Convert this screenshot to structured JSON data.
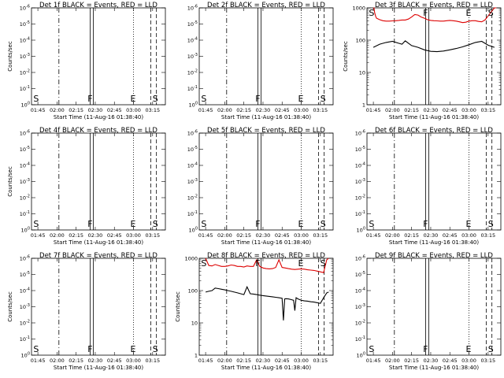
{
  "chart_data": [
    {
      "type": "line",
      "title": "Det 1f BLACK = Events, RED = LLD",
      "xlabel": "Start Time (11-Aug-16 01:38:40)",
      "ylabel": "Counts/sec",
      "x_ticks": [
        "01:45",
        "02:00",
        "02:15",
        "02:30",
        "02:45",
        "03:00",
        "03:15"
      ],
      "y_ticks": [
        "10^0",
        "10^-1",
        "10^-2",
        "10^-3",
        "10^-4",
        "10^-5",
        "10^-6"
      ],
      "markers": [
        "S",
        "F",
        "E",
        "S"
      ],
      "log_y": true,
      "series": []
    },
    {
      "type": "line",
      "title": "Det 2f BLACK = Events, RED = LLD",
      "xlabel": "Start Time (11-Aug-16 01:38:40)",
      "ylabel": "",
      "x_ticks": [
        "01:45",
        "02:00",
        "02:15",
        "02:30",
        "02:45",
        "03:00",
        "03:15"
      ],
      "y_ticks": [
        "10^0",
        "10^-1",
        "10^-2",
        "10^-3",
        "10^-4",
        "10^-5",
        "10^-6"
      ],
      "markers": [
        "S",
        "F",
        "E",
        "S"
      ],
      "log_y": true,
      "series": []
    },
    {
      "type": "line",
      "title": "Det 3f BLACK = Events, RED = LLD",
      "xlabel": "Start Time (11-Aug-16 01:38:40)",
      "ylabel": "Counts/sec",
      "x_ticks": [
        "01:45",
        "02:00",
        "02:15",
        "02:30",
        "02:45",
        "03:00",
        "03:15"
      ],
      "y_ticks": [
        "1",
        "10",
        "100",
        "1000"
      ],
      "markers": [
        "S",
        "F",
        "E",
        "S"
      ],
      "log_y": true,
      "ylim": [
        1,
        1000
      ],
      "series": [
        {
          "color": "#dd0000",
          "x": [
            1.0,
            1.1,
            1.2,
            1.35,
            1.5,
            2.0,
            2.5,
            3.0,
            3.5,
            4.0,
            4.5,
            5.0,
            5.5,
            6.0,
            6.5,
            7.0,
            7.5,
            8.0,
            8.5,
            9.0,
            9.5,
            10.0,
            10.5,
            11.0,
            11.5,
            12.0,
            12.5,
            13.0,
            13.5,
            14.0,
            14.5,
            15.0,
            15.5,
            16.0,
            16.5,
            17.0,
            17.5,
            18.0,
            18.5,
            19.0,
            19.5,
            20.0,
            20.3
          ],
          "y": [
            1000,
            1000,
            720,
            560,
            480,
            430,
            400,
            390,
            390,
            395,
            400,
            410,
            420,
            420,
            450,
            520,
            620,
            600,
            520,
            480,
            430,
            410,
            400,
            395,
            390,
            390,
            400,
            410,
            400,
            390,
            370,
            350,
            360,
            390,
            400,
            400,
            380,
            370,
            420,
            560,
            760,
            1000,
            1000
          ]
        },
        {
          "color": "#000000",
          "x": [
            1.0,
            2.0,
            3.0,
            4.0,
            5.0,
            5.5,
            6.0,
            7.0,
            8.0,
            9.0,
            10.0,
            11.0,
            12.0,
            13.0,
            14.0,
            15.0,
            16.0,
            17.0,
            18.0,
            19.0,
            20.0
          ],
          "y": [
            60,
            75,
            85,
            92,
            80,
            75,
            95,
            68,
            60,
            50,
            45,
            44,
            46,
            50,
            55,
            62,
            72,
            85,
            92,
            70,
            60
          ]
        }
      ]
    },
    {
      "type": "line",
      "title": "Det 4f BLACK = Events, RED = LLD",
      "xlabel": "Start Time (11-Aug-16 01:38:40)",
      "ylabel": "Counts/sec",
      "x_ticks": [
        "01:45",
        "02:00",
        "02:15",
        "02:30",
        "02:45",
        "03:00",
        "03:15"
      ],
      "y_ticks": [
        "10^0",
        "10^-1",
        "10^-2",
        "10^-3",
        "10^-4",
        "10^-5",
        "10^-6"
      ],
      "markers": [
        "S",
        "F",
        "E",
        "S"
      ],
      "log_y": true,
      "series": []
    },
    {
      "type": "line",
      "title": "Det 5f BLACK = Events, RED = LLD",
      "xlabel": "Start Time (11-Aug-16 01:38:40)",
      "ylabel": "",
      "x_ticks": [
        "01:45",
        "02:00",
        "02:15",
        "02:30",
        "02:45",
        "03:00",
        "03:15"
      ],
      "y_ticks": [
        "10^0",
        "10^-1",
        "10^-2",
        "10^-3",
        "10^-4",
        "10^-5",
        "10^-6"
      ],
      "markers": [
        "S",
        "F",
        "E",
        "S"
      ],
      "log_y": true,
      "series": []
    },
    {
      "type": "line",
      "title": "Det 6f BLACK = Events, RED = LLD",
      "xlabel": "Start Time (11-Aug-16 01:38:40)",
      "ylabel": "",
      "x_ticks": [
        "01:45",
        "02:00",
        "02:15",
        "02:30",
        "02:45",
        "03:00",
        "03:15"
      ],
      "y_ticks": [
        "10^0",
        "10^-1",
        "10^-2",
        "10^-3",
        "10^-4",
        "10^-5",
        "10^-6"
      ],
      "markers": [
        "S",
        "F",
        "E",
        "S"
      ],
      "log_y": true,
      "series": []
    },
    {
      "type": "line",
      "title": "Det 7f BLACK = Events, RED = LLD",
      "xlabel": "Start Time (11-Aug-16 01:38:40)",
      "ylabel": "Counts/sec",
      "x_ticks": [
        "01:45",
        "02:00",
        "02:15",
        "02:30",
        "02:45",
        "03:00",
        "03:15"
      ],
      "y_ticks": [
        "10^0",
        "10^-1",
        "10^-2",
        "10^-3",
        "10^-4",
        "10^-5",
        "10^-6"
      ],
      "markers": [
        "S",
        "F",
        "E",
        "S"
      ],
      "log_y": true,
      "series": []
    },
    {
      "type": "line",
      "title": "Det 8f BLACK = Events, RED = LLD",
      "xlabel": "Start Time (11-Aug-16 01:38:40)",
      "ylabel": "Counts/sec",
      "x_ticks": [
        "01:45",
        "02:00",
        "02:15",
        "02:30",
        "02:45",
        "03:00",
        "03:15"
      ],
      "y_ticks": [
        "1",
        "10",
        "100",
        "1000"
      ],
      "markers": [
        "S",
        "F",
        "E",
        "S"
      ],
      "log_y": true,
      "ylim": [
        1,
        1000
      ],
      "series": [
        {
          "color": "#dd0000",
          "x": [
            1.0,
            1.5,
            2.0,
            2.5,
            3.0,
            3.5,
            4.0,
            4.5,
            5.0,
            5.5,
            6.0,
            6.5,
            7.0,
            7.5,
            8.0,
            8.5,
            9.0,
            9.5,
            10.0,
            10.5,
            11.0,
            11.5,
            12.0,
            12.5,
            13.0,
            13.5,
            14.0,
            14.5,
            15.0,
            15.5,
            16.0,
            16.5,
            17.0,
            17.5,
            18.0,
            18.5,
            19.0,
            19.5,
            20.0,
            20.3
          ],
          "y": [
            1000,
            600,
            580,
            640,
            600,
            560,
            560,
            580,
            620,
            600,
            560,
            560,
            540,
            580,
            560,
            560,
            900,
            560,
            500,
            480,
            470,
            480,
            520,
            900,
            520,
            500,
            480,
            460,
            450,
            460,
            470,
            460,
            440,
            430,
            420,
            400,
            380,
            360,
            900,
            1000
          ]
        },
        {
          "color": "#000000",
          "x": [
            1.0,
            1.5,
            2.0,
            2.5,
            3.0,
            3.5,
            4.0,
            4.5,
            5.0,
            5.5,
            6.0,
            6.5,
            7.0,
            7.5,
            8.0,
            8.5,
            9.0,
            9.5,
            10.0,
            10.5,
            11.0,
            11.5,
            12.0,
            12.5,
            13.0,
            13.2,
            13.4,
            13.6,
            14.0,
            14.5,
            14.8,
            15.0,
            15.2,
            15.5,
            16.0,
            16.5,
            17.0,
            17.5,
            18.0,
            18.5,
            19.0,
            19.5,
            20.0,
            20.3
          ],
          "y": [
            90,
            95,
            100,
            120,
            115,
            110,
            105,
            100,
            95,
            90,
            85,
            80,
            75,
            130,
            80,
            78,
            75,
            72,
            70,
            68,
            66,
            64,
            62,
            60,
            58,
            12,
            55,
            56,
            55,
            52,
            50,
            24,
            60,
            55,
            50,
            48,
            47,
            45,
            44,
            42,
            40,
            60,
            85,
            90
          ]
        }
      ]
    },
    {
      "type": "line",
      "title": "Det 9f BLACK = Events, RED = LLD",
      "xlabel": "Start Time (11-Aug-16 01:38:40)",
      "ylabel": "",
      "x_ticks": [
        "01:45",
        "02:00",
        "02:15",
        "02:30",
        "02:45",
        "03:00",
        "03:15"
      ],
      "y_ticks": [
        "10^0",
        "10^-1",
        "10^-2",
        "10^-3",
        "10^-4",
        "10^-5",
        "10^-6"
      ],
      "markers": [
        "S",
        "F",
        "E",
        "S"
      ],
      "log_y": true,
      "series": []
    }
  ]
}
